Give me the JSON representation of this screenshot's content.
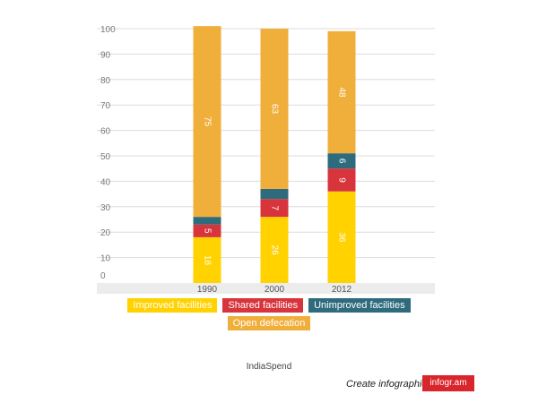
{
  "chart_data": {
    "type": "bar",
    "stacked": true,
    "categories": [
      "1990",
      "2000",
      "2012"
    ],
    "series": [
      {
        "name": "Improved facilities",
        "color": "#ffd200",
        "values": [
          18,
          26,
          36
        ]
      },
      {
        "name": "Shared facilities",
        "color": "#d8343c",
        "values": [
          5,
          7,
          9
        ]
      },
      {
        "name": "Unimproved facilities",
        "color": "#2e6b7d",
        "values": [
          3,
          4,
          6
        ]
      },
      {
        "name": "Open defecation",
        "color": "#f0ae3a",
        "values": [
          75,
          63,
          48
        ]
      }
    ],
    "value_labels": [
      [
        "18",
        "5",
        "",
        "75"
      ],
      [
        "26",
        "7",
        "",
        "63"
      ],
      [
        "36",
        "9",
        "6",
        "48"
      ]
    ],
    "y_ticks": [
      "0",
      "10",
      "20",
      "30",
      "40",
      "50",
      "60",
      "70",
      "80",
      "90",
      "100"
    ],
    "ylim": [
      0,
      100
    ],
    "grid": true,
    "legend_position": "bottom"
  },
  "legend": {
    "row1": [
      "Improved facilities",
      "Shared facilities",
      "Unimproved facilities"
    ],
    "row2": [
      "Open defecation"
    ],
    "colors": {
      "Improved facilities": "#ffd200",
      "Shared facilities": "#d8343c",
      "Unimproved facilities": "#2e6b7d",
      "Open defecation": "#f0ae3a"
    }
  },
  "source": "IndiaSpend",
  "footer": {
    "create_text": "Create infographics",
    "brand": "infogr.am"
  }
}
